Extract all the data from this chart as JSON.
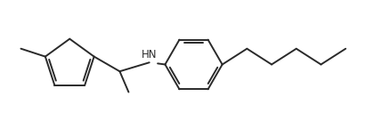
{
  "bg_color": "#ffffff",
  "line_color": "#2a2a2a",
  "line_width": 1.4,
  "font_size": 8.5,
  "figsize": [
    4.39,
    1.45
  ],
  "dpi": 100
}
